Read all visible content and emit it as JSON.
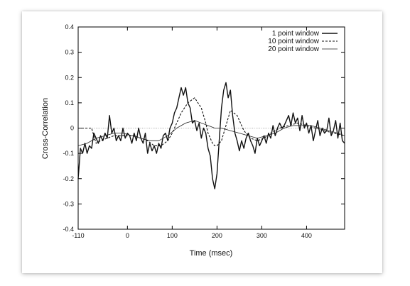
{
  "chart_data": {
    "type": "line",
    "title": "",
    "xlabel": "Time (msec)",
    "ylabel": "Cross-Correlation",
    "xlim": [
      -110,
      485
    ],
    "ylim": [
      -0.4,
      0.4
    ],
    "xticks": [
      -110,
      0,
      100,
      200,
      300,
      400
    ],
    "xtick_labels": [
      "-110",
      "0",
      "100",
      "200",
      "300",
      "400"
    ],
    "yticks": [
      0.4,
      0.3,
      0.2,
      0.1,
      0,
      -0.1,
      -0.2,
      -0.3,
      -0.4
    ],
    "ytick_labels": [
      "0.4",
      "0.3",
      "0.2",
      "0.1",
      "0",
      "-0.1",
      "-0.2",
      "-0.3",
      "-0.4"
    ],
    "grid": false,
    "legend_position": "top-right",
    "zero_line": true,
    "series": [
      {
        "name": "1 point window",
        "style": "solid-thick",
        "x": [
          -110,
          -105,
          -100,
          -95,
          -90,
          -85,
          -80,
          -75,
          -70,
          -65,
          -60,
          -55,
          -50,
          -45,
          -40,
          -35,
          -30,
          -25,
          -20,
          -15,
          -10,
          -5,
          0,
          5,
          10,
          15,
          20,
          25,
          30,
          35,
          40,
          45,
          50,
          55,
          60,
          65,
          70,
          75,
          80,
          85,
          90,
          95,
          100,
          105,
          110,
          115,
          120,
          125,
          130,
          135,
          140,
          145,
          150,
          155,
          160,
          165,
          170,
          175,
          180,
          185,
          190,
          195,
          200,
          205,
          210,
          215,
          220,
          225,
          230,
          235,
          240,
          245,
          250,
          255,
          260,
          265,
          270,
          275,
          280,
          285,
          290,
          295,
          300,
          305,
          310,
          315,
          320,
          325,
          330,
          335,
          340,
          345,
          350,
          355,
          360,
          365,
          370,
          375,
          380,
          385,
          390,
          395,
          400,
          405,
          410,
          415,
          420,
          425,
          430,
          435,
          440,
          445,
          450,
          455,
          460,
          465,
          470,
          475,
          480,
          485
        ],
        "y": [
          -0.2,
          -0.08,
          -0.1,
          -0.06,
          -0.1,
          -0.07,
          -0.08,
          -0.02,
          -0.04,
          -0.06,
          -0.03,
          -0.05,
          -0.02,
          -0.04,
          0.05,
          -0.02,
          0.0,
          -0.05,
          -0.03,
          -0.05,
          0.0,
          -0.04,
          -0.02,
          -0.03,
          -0.06,
          -0.02,
          -0.05,
          0.0,
          -0.04,
          -0.06,
          -0.02,
          -0.1,
          -0.06,
          -0.09,
          -0.07,
          -0.1,
          -0.06,
          -0.08,
          -0.03,
          -0.02,
          -0.05,
          0.0,
          0.02,
          0.06,
          0.08,
          0.12,
          0.16,
          0.13,
          0.16,
          0.1,
          0.08,
          0.02,
          0.03,
          -0.01,
          0.02,
          -0.04,
          0.0,
          -0.02,
          -0.08,
          -0.11,
          -0.2,
          -0.24,
          -0.18,
          -0.05,
          0.08,
          0.15,
          0.18,
          0.12,
          0.15,
          0.05,
          -0.02,
          -0.05,
          -0.09,
          -0.05,
          -0.08,
          -0.04,
          -0.02,
          -0.05,
          -0.07,
          -0.1,
          -0.04,
          -0.07,
          -0.05,
          -0.03,
          -0.06,
          -0.02,
          -0.04,
          0.01,
          -0.03,
          0.0,
          0.02,
          0.0,
          0.01,
          0.03,
          0.05,
          0.01,
          0.06,
          0.02,
          0.04,
          -0.01,
          0.05,
          0.0,
          0.02,
          -0.02,
          0.01,
          -0.05,
          -0.01,
          0.03,
          -0.03,
          0.0,
          -0.02,
          -0.01,
          0.04,
          -0.03,
          -0.01,
          0.03,
          -0.04,
          0.02,
          -0.05,
          -0.06
        ]
      },
      {
        "name": "10 point window",
        "style": "dashed",
        "x": [
          -110,
          -80,
          -70,
          -60,
          -45,
          -30,
          -15,
          0,
          15,
          30,
          45,
          60,
          75,
          90,
          100,
          110,
          120,
          135,
          150,
          165,
          175,
          180,
          190,
          195,
          200,
          210,
          220,
          230,
          245,
          260,
          275,
          290,
          305,
          320,
          340,
          360,
          380,
          400,
          420,
          440,
          460,
          485
        ],
        "y": [
          0.0,
          0.0,
          -0.06,
          -0.05,
          -0.04,
          -0.03,
          -0.03,
          -0.03,
          -0.03,
          -0.04,
          -0.05,
          -0.07,
          -0.07,
          -0.05,
          -0.02,
          0.02,
          0.06,
          0.1,
          0.12,
          0.08,
          0.02,
          -0.02,
          -0.06,
          -0.07,
          -0.07,
          -0.05,
          0.01,
          0.07,
          0.05,
          -0.01,
          -0.04,
          -0.05,
          -0.04,
          -0.02,
          0.0,
          0.01,
          0.02,
          0.01,
          0.0,
          -0.01,
          -0.02,
          -0.03
        ]
      },
      {
        "name": "20 point window",
        "style": "solid-thin",
        "x": [
          -110,
          -90,
          -70,
          -50,
          -30,
          -10,
          10,
          30,
          50,
          70,
          90,
          110,
          130,
          150,
          165,
          180,
          195,
          210,
          230,
          250,
          270,
          290,
          310,
          330,
          350,
          370,
          390,
          410,
          430,
          450,
          470,
          485
        ],
        "y": [
          -0.07,
          -0.06,
          -0.04,
          -0.03,
          -0.02,
          -0.02,
          -0.03,
          -0.04,
          -0.05,
          -0.05,
          -0.03,
          0.0,
          0.02,
          0.03,
          0.02,
          0.01,
          0.0,
          0.0,
          -0.01,
          -0.02,
          -0.03,
          -0.04,
          -0.03,
          -0.02,
          0.0,
          0.01,
          0.01,
          0.01,
          0.0,
          -0.01,
          -0.02,
          -0.03
        ]
      }
    ]
  }
}
